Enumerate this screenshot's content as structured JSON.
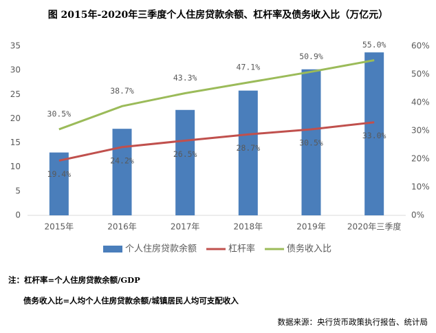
{
  "chart_data": {
    "type": "bar",
    "title": "图 2015年-2020年三季度个人住房贷款余额、杠杆率及债务收入比（万亿元）",
    "categories": [
      "2015年",
      "2016年",
      "2017年",
      "2018年",
      "2019年",
      "2020年三季度"
    ],
    "series": [
      {
        "name": "个人住房贷款余额",
        "color": "#4a7ebb",
        "values": [
          13.0,
          17.9,
          21.8,
          25.8,
          30.2,
          33.7
        ]
      },
      {
        "name": "杠杆率",
        "type": "line",
        "axis": "y2",
        "color": "#c0504d",
        "label_position": "below",
        "values": [
          19.4,
          24.2,
          26.5,
          28.7,
          30.5,
          33.0
        ],
        "value_labels": [
          "19.4%",
          "24.2%",
          "26.5%",
          "28.7%",
          "30.5%",
          "33.0%"
        ]
      },
      {
        "name": "债务收入比",
        "type": "line",
        "axis": "y2",
        "color": "#9bbb59",
        "label_position": "above",
        "values": [
          30.5,
          38.7,
          43.3,
          47.1,
          50.9,
          55.0
        ],
        "value_labels": [
          "30.5%",
          "38.7%",
          "43.3%",
          "47.1%",
          "50.9%",
          "55.0%"
        ]
      }
    ],
    "ylim": [
      0,
      35
    ],
    "yticks": [
      0,
      5,
      10,
      15,
      20,
      25,
      30,
      35
    ],
    "y2lim": [
      0,
      60
    ],
    "y2ticks": [
      {
        "value": 0,
        "label": "0%"
      },
      {
        "value": 10,
        "label": "10%"
      },
      {
        "value": 20,
        "label": "20%"
      },
      {
        "value": 30,
        "label": "30%"
      },
      {
        "value": 40,
        "label": "40%"
      },
      {
        "value": 50,
        "label": "50%"
      },
      {
        "value": 60,
        "label": "60%"
      }
    ],
    "grid": false,
    "legend": "bottom",
    "notes": [
      "注：杠杆率=个人住房贷款余额/GDP",
      "债务收入比=人均个人住房贷款余额/城镇居民人均可支配收入"
    ],
    "source": "数据来源：央行货币政策执行报告、统计局"
  }
}
